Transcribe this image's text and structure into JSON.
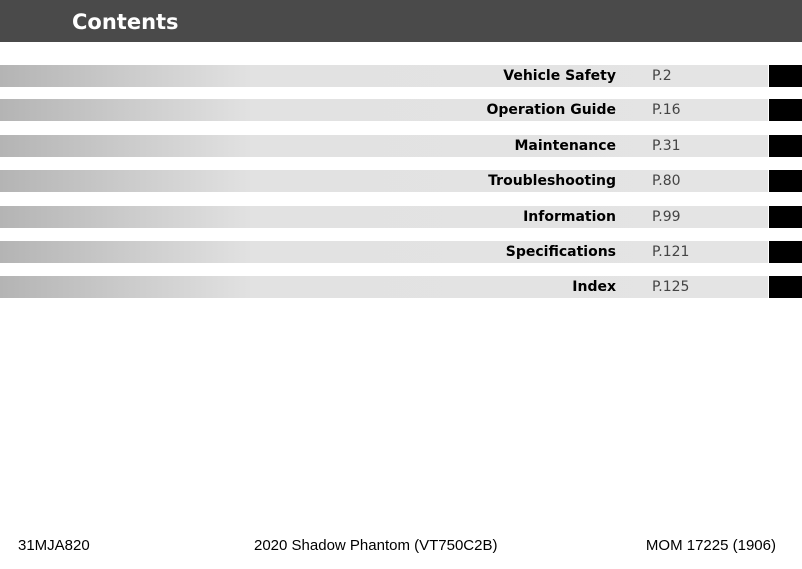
{
  "header": {
    "title": "Contents"
  },
  "entries": [
    {
      "title": "Vehicle Safety",
      "page": "P.2"
    },
    {
      "title": "Operation Guide",
      "page": "P.16"
    },
    {
      "title": "Maintenance",
      "page": "P.31"
    },
    {
      "title": "Troubleshooting",
      "page": "P.80"
    },
    {
      "title": "Information",
      "page": "P.99"
    },
    {
      "title": "Specifications",
      "page": "P.121"
    },
    {
      "title": "Index",
      "page": "P.125"
    }
  ],
  "footer": {
    "left": "31MJA820",
    "center": "2020 Shadow Phantom (VT750C2B)",
    "right": "MOM 17225 (1906)"
  }
}
